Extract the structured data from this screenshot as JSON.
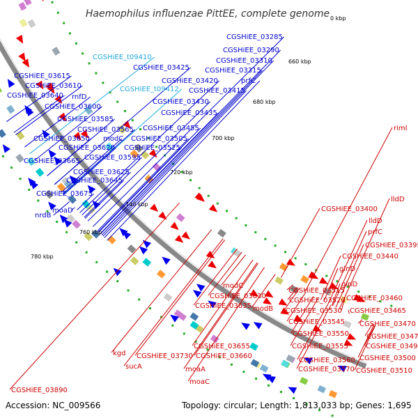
{
  "title": "Haemophilus influenzae PittEE, complete genome",
  "accession_text": "Accession: NC_009566",
  "topology_text": "Topology: circular; Length: 1,813,033 bp; Genes: 1,695",
  "colors": {
    "outer_gene_label": "#0000cc",
    "trna_label": "#22aadd",
    "inner_gene_label": "#cc0000",
    "ring": "#888888",
    "tick": "#22aa22"
  },
  "kbp_ticks": [
    "0 kbp",
    "660 kbp",
    "680 kbp",
    "700 kbp",
    "720 kbp",
    "740 kbp",
    "760 kbp",
    "780 kbp"
  ],
  "outer_labels": [
    "CGSHiEE_03285",
    "CGSHiEE_03290",
    "CGSHiEE_03310",
    "CGSHiEE_03315",
    "CGSHiEE_t09410",
    "CGSHiEE_03425",
    "CGSHiEE_03420",
    "CGSHiEE_t09412",
    "CGSHiEE_03415",
    "prfC",
    "CGSHiEE_03615",
    "CGSHiEE_03610",
    "CGSHiEE_03640",
    "rnfD",
    "CGSHiEE_03600",
    "CGSHiEE_03430",
    "CGSHiEE_03435",
    "CGSHiEE_03585",
    "CGSHiEE_03565",
    "CGSHiEE_03455",
    "modC",
    "CGSHiEE_03505",
    "CGSHiEE_03650",
    "CGSHiEE_03620",
    "CGSHiEE_03525",
    "CGSHiEE_03595",
    "CGSHiEE_03665",
    "CGSHiEE_03625",
    "CGSHiEE_03645",
    "CGSHiEE_03675",
    "moaD",
    "nrdB"
  ],
  "inner_labels": [
    "rimI",
    "lldD",
    "CGSHiEE_03400",
    "lldD",
    "prfC",
    "CGSHiEE_03395",
    "CGSHiEE_03440",
    "glnD",
    "glnD",
    "modC",
    "CGSHiEE_03630",
    "CGSHiEE_03635",
    "CGSHiEE_03515",
    "CGSHiEE_03520",
    "CGSHiEE_03460",
    "CGSHiEE_03465",
    "modB",
    "CGSHiEE_03530",
    "CGSHiEE_03545",
    "CGSHiEE_03470",
    "CGSHiEE_03475",
    "CGSHiEE_03550",
    "CGSHiEE_03490",
    "CGSHiEE_03655",
    "CGSHiEE_03555",
    "kgd",
    "CGSHiEE_03730",
    "CGSHiEE_03660",
    "CGSHiEE_03500",
    "sucA",
    "CGSHiEE_03560",
    "moaA",
    "CGSHiEE_03570",
    "CGSHiEE_03510",
    "moaC",
    "CGSHiEE_03890"
  ]
}
